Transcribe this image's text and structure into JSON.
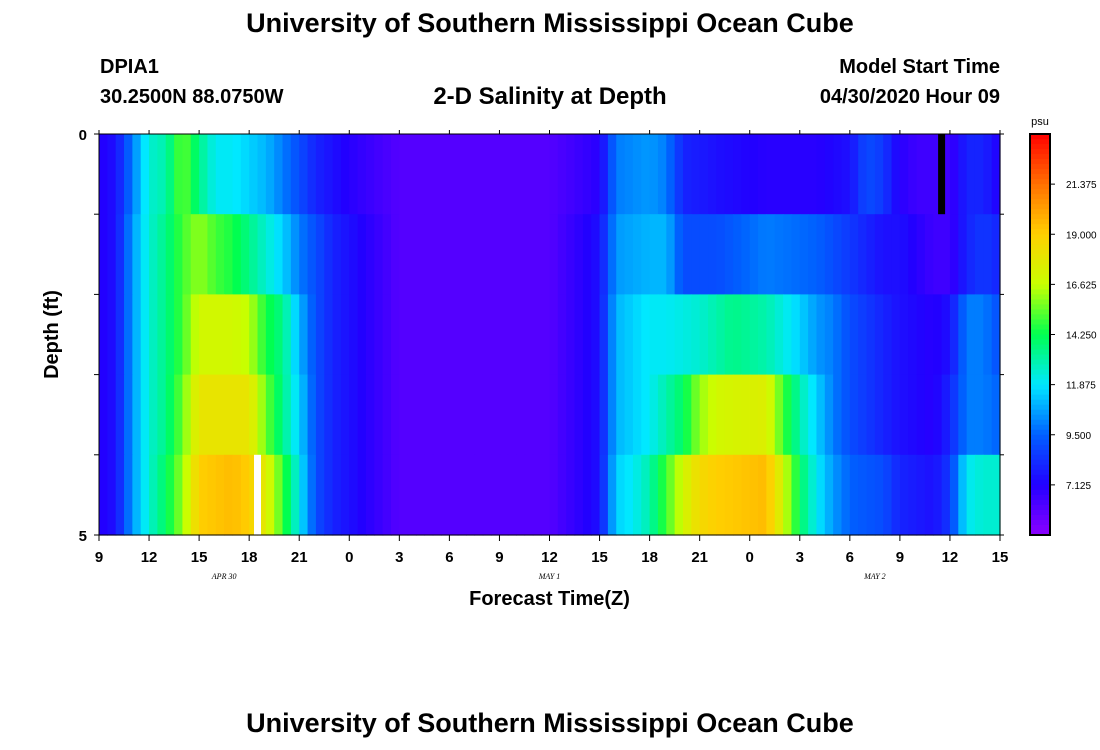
{
  "header": {
    "title": "University of Southern Mississippi Ocean Cube",
    "station_id": "DPIA1",
    "station_coords": "30.2500N 88.0750W",
    "plot_title": "2-D Salinity at Depth",
    "model_start_label": "Model Start Time",
    "model_start_value": "04/30/2020 Hour 09"
  },
  "footer": {
    "title": "University of Southern Mississippi Ocean Cube"
  },
  "chart_data": {
    "type": "heatmap",
    "title": "2-D Salinity at Depth",
    "xlabel": "Forecast Time(Z)",
    "ylabel": "Depth (ft)",
    "ylim": [
      0,
      5
    ],
    "y_ticks": [
      "0",
      "5"
    ],
    "x_tick_labels": [
      "9",
      "12",
      "15",
      "18",
      "21",
      "0",
      "3",
      "6",
      "9",
      "12",
      "15",
      "18",
      "21",
      "0",
      "3",
      "6",
      "9",
      "12",
      "15"
    ],
    "date_labels": [
      {
        "text": "APR 30",
        "tick_index": 2.5
      },
      {
        "text": "MAY 1",
        "tick_index": 9
      },
      {
        "text": "MAY 2",
        "tick_index": 15.5
      }
    ],
    "colorbar": {
      "unit": "psu",
      "vmin": 4.75,
      "vmax": 23.75,
      "tick_values": [
        7.125,
        9.5,
        11.875,
        14.25,
        16.625,
        19.0,
        21.375
      ],
      "tick_labels": [
        "7.125",
        "9.500",
        "11.875",
        "14.250",
        "16.625",
        "19.000",
        "21.375"
      ],
      "colors": [
        "#8c00ff",
        "#2200ff",
        "#0060ff",
        "#00e8ff",
        "#00ff50",
        "#c8ff00",
        "#ffd000",
        "#ff7000",
        "#ff0000"
      ]
    },
    "hours_start": 9,
    "hours_span": 54,
    "depth_layers": 5,
    "layers": [
      {
        "depth_range": [
          0,
          1
        ],
        "points": [
          [
            0,
            7
          ],
          [
            1,
            7.5
          ],
          [
            2,
            10
          ],
          [
            3,
            12.5
          ],
          [
            4,
            13
          ],
          [
            5,
            15.5
          ],
          [
            6,
            13.5
          ],
          [
            7,
            12
          ],
          [
            8,
            12
          ],
          [
            9,
            11.5
          ],
          [
            10,
            11
          ],
          [
            11,
            10
          ],
          [
            12,
            9
          ],
          [
            13,
            8
          ],
          [
            14,
            7.5
          ],
          [
            15,
            7
          ],
          [
            18,
            6
          ],
          [
            24,
            6
          ],
          [
            27,
            6
          ],
          [
            30,
            7
          ],
          [
            31,
            10
          ],
          [
            33,
            10.5
          ],
          [
            34,
            10
          ],
          [
            35,
            8
          ],
          [
            37,
            7.5
          ],
          [
            40,
            7
          ],
          [
            43,
            7
          ],
          [
            45,
            7.5
          ],
          [
            46,
            9
          ],
          [
            47,
            8.5
          ],
          [
            48,
            7
          ],
          [
            49,
            6.5
          ],
          [
            50,
            6.5
          ],
          [
            51,
            6.5
          ],
          [
            52,
            8
          ],
          [
            53,
            8
          ],
          [
            54,
            7
          ]
        ]
      },
      {
        "depth_range": [
          1,
          2
        ],
        "points": [
          [
            0,
            7
          ],
          [
            1,
            7.5
          ],
          [
            2,
            10.5
          ],
          [
            3,
            12.5
          ],
          [
            4,
            13.5
          ],
          [
            5,
            15
          ],
          [
            6,
            16
          ],
          [
            7,
            15
          ],
          [
            8,
            14.5
          ],
          [
            9,
            13.5
          ],
          [
            10,
            12.5
          ],
          [
            11,
            11.5
          ],
          [
            12,
            10
          ],
          [
            13,
            9
          ],
          [
            14,
            8
          ],
          [
            15,
            7.5
          ],
          [
            18,
            6
          ],
          [
            24,
            6
          ],
          [
            27,
            6
          ],
          [
            30,
            7.5
          ],
          [
            31,
            10.5
          ],
          [
            33,
            11
          ],
          [
            34,
            11
          ],
          [
            35,
            9
          ],
          [
            37,
            9
          ],
          [
            40,
            10
          ],
          [
            43,
            9.5
          ],
          [
            45,
            8.5
          ],
          [
            47,
            7.5
          ],
          [
            48,
            7.5
          ],
          [
            50,
            6.5
          ],
          [
            51,
            6.5
          ],
          [
            52,
            8
          ],
          [
            53,
            8.5
          ],
          [
            54,
            8
          ]
        ]
      },
      {
        "depth_range": [
          2,
          3
        ],
        "points": [
          [
            0,
            7
          ],
          [
            1,
            7.5
          ],
          [
            2,
            10.5
          ],
          [
            3,
            12.5
          ],
          [
            4,
            13.5
          ],
          [
            5,
            15
          ],
          [
            6,
            17
          ],
          [
            8,
            17
          ],
          [
            9,
            16.5
          ],
          [
            10,
            14.5
          ],
          [
            11,
            13.5
          ],
          [
            12,
            11
          ],
          [
            13,
            9
          ],
          [
            14,
            8
          ],
          [
            15,
            7.5
          ],
          [
            18,
            6
          ],
          [
            24,
            6
          ],
          [
            27,
            6
          ],
          [
            30,
            7.5
          ],
          [
            31,
            11
          ],
          [
            33,
            12
          ],
          [
            34,
            12
          ],
          [
            36,
            12.5
          ],
          [
            37,
            13
          ],
          [
            38,
            13.5
          ],
          [
            40,
            13
          ],
          [
            42,
            11.5
          ],
          [
            43,
            10.5
          ],
          [
            44,
            10
          ],
          [
            45,
            9
          ],
          [
            47,
            8
          ],
          [
            48,
            7.5
          ],
          [
            50,
            7
          ],
          [
            51,
            7.5
          ],
          [
            52,
            10
          ],
          [
            53,
            10
          ],
          [
            54,
            9
          ]
        ]
      },
      {
        "depth_range": [
          3,
          4
        ],
        "points": [
          [
            0,
            7
          ],
          [
            1,
            7.5
          ],
          [
            2,
            10.5
          ],
          [
            3,
            12.5
          ],
          [
            4,
            13.5
          ],
          [
            5,
            15.5
          ],
          [
            6,
            18
          ],
          [
            8,
            18
          ],
          [
            9,
            18
          ],
          [
            10,
            15.5
          ],
          [
            11,
            13.5
          ],
          [
            12,
            11.5
          ],
          [
            13,
            9
          ],
          [
            14,
            8
          ],
          [
            15,
            7.5
          ],
          [
            18,
            6
          ],
          [
            24,
            6
          ],
          [
            27,
            6
          ],
          [
            30,
            7.5
          ],
          [
            31,
            11
          ],
          [
            32,
            11.5
          ],
          [
            33,
            12
          ],
          [
            35,
            14
          ],
          [
            36,
            16
          ],
          [
            37,
            17
          ],
          [
            40,
            17.5
          ],
          [
            41,
            15
          ],
          [
            42,
            13
          ],
          [
            43,
            11.5
          ],
          [
            44,
            10
          ],
          [
            45,
            9
          ],
          [
            47,
            8
          ],
          [
            48,
            7.5
          ],
          [
            50,
            7
          ],
          [
            51,
            8
          ],
          [
            52,
            10
          ],
          [
            53,
            10
          ],
          [
            54,
            9.5
          ]
        ]
      },
      {
        "depth_range": [
          4,
          5
        ],
        "points": [
          [
            0,
            7
          ],
          [
            1,
            7.5
          ],
          [
            2,
            10.5
          ],
          [
            3,
            12.5
          ],
          [
            4,
            14
          ],
          [
            5,
            16
          ],
          [
            6,
            19
          ],
          [
            8,
            19.5
          ],
          [
            9,
            19
          ],
          [
            10,
            17.5
          ],
          [
            11,
            15
          ],
          [
            12,
            12
          ],
          [
            13,
            9
          ],
          [
            14,
            8
          ],
          [
            15,
            7.5
          ],
          [
            18,
            6
          ],
          [
            24,
            6
          ],
          [
            27,
            6
          ],
          [
            30,
            7.5
          ],
          [
            31,
            11.5
          ],
          [
            32,
            12
          ],
          [
            33,
            13
          ],
          [
            35,
            17
          ],
          [
            36,
            18.5
          ],
          [
            37,
            19
          ],
          [
            40,
            19.5
          ],
          [
            41,
            17
          ],
          [
            42,
            14
          ],
          [
            43,
            12
          ],
          [
            44,
            10.5
          ],
          [
            45,
            9.5
          ],
          [
            47,
            9
          ],
          [
            48,
            8
          ],
          [
            50,
            7.5
          ],
          [
            51,
            8.5
          ],
          [
            52,
            12
          ],
          [
            53,
            12.5
          ],
          [
            54,
            12.5
          ]
        ]
      }
    ],
    "missing_cells": [
      {
        "hour": 18.5,
        "depth_index": 4,
        "color": "#ffffff"
      },
      {
        "hour": 59.5,
        "depth_index": 0,
        "color": "#000000"
      }
    ]
  }
}
